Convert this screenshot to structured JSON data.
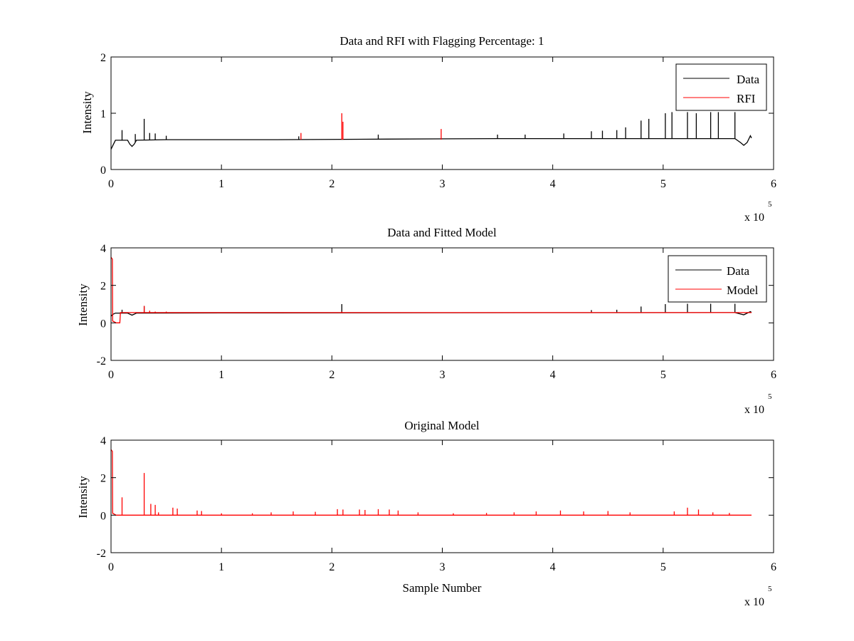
{
  "colors": {
    "data": "#000000",
    "model": "#ff0000",
    "background": "#ffffff"
  },
  "chart_data": [
    {
      "type": "line",
      "title": "Data and RFI with Flagging Percentage: 1",
      "xlabel": "",
      "ylabel": "Intensity",
      "xlim": [
        0,
        6
      ],
      "ylim": [
        0,
        2
      ],
      "x_scale_label": "x 10",
      "x_scale_exponent": "5",
      "xticks": [
        0,
        1,
        2,
        3,
        4,
        5,
        6
      ],
      "yticks": [
        0,
        1,
        2
      ],
      "xtick_labels": [
        "0",
        "1",
        "2",
        "3",
        "4",
        "5",
        "6"
      ],
      "ytick_labels": [
        "0",
        "1",
        "2"
      ],
      "legend": [
        {
          "label": "Data",
          "color": "#000000"
        },
        {
          "label": "RFI",
          "color": "#ff0000"
        }
      ],
      "legend_position": "top-right",
      "series": [
        {
          "name": "Data",
          "color": "#000000",
          "baseline": [
            [
              0,
              0.36
            ],
            [
              0.015,
              0.42
            ],
            [
              0.04,
              0.52
            ],
            [
              0.15,
              0.52
            ],
            [
              0.17,
              0.45
            ],
            [
              0.19,
              0.41
            ],
            [
              0.21,
              0.45
            ],
            [
              0.23,
              0.52
            ],
            [
              0.5,
              0.53
            ],
            [
              1.5,
              0.53
            ],
            [
              2.5,
              0.54
            ],
            [
              3.5,
              0.55
            ],
            [
              4.5,
              0.55
            ],
            [
              5.65,
              0.55
            ],
            [
              5.7,
              0.48
            ],
            [
              5.73,
              0.43
            ],
            [
              5.76,
              0.48
            ],
            [
              5.79,
              0.6
            ],
            [
              5.8,
              0.56
            ]
          ],
          "spikes": [
            [
              0.1,
              0.7
            ],
            [
              0.22,
              0.63
            ],
            [
              0.3,
              0.9
            ],
            [
              0.35,
              0.65
            ],
            [
              0.4,
              0.64
            ],
            [
              0.5,
              0.6
            ],
            [
              1.7,
              0.59
            ],
            [
              2.42,
              0.62
            ],
            [
              3.5,
              0.62
            ],
            [
              3.75,
              0.62
            ],
            [
              4.1,
              0.64
            ],
            [
              4.35,
              0.68
            ],
            [
              4.45,
              0.69
            ],
            [
              4.58,
              0.7
            ],
            [
              4.66,
              0.75
            ],
            [
              4.8,
              0.87
            ],
            [
              4.87,
              0.9
            ],
            [
              5.02,
              1.0
            ],
            [
              5.08,
              1.02
            ],
            [
              5.22,
              1.02
            ],
            [
              5.3,
              1.0
            ],
            [
              5.43,
              1.02
            ],
            [
              5.5,
              1.02
            ],
            [
              5.65,
              1.02
            ]
          ]
        },
        {
          "name": "RFI",
          "color": "#ff0000",
          "spikes": [
            [
              1.72,
              0.65
            ],
            [
              2.09,
              1.0
            ],
            [
              2.1,
              0.85
            ],
            [
              2.99,
              0.72
            ]
          ]
        }
      ]
    },
    {
      "type": "line",
      "title": "Data and Fitted Model",
      "xlabel": "",
      "ylabel": "Intensity",
      "xlim": [
        0,
        6
      ],
      "ylim": [
        -2,
        4
      ],
      "x_scale_label": "x 10",
      "x_scale_exponent": "5",
      "xticks": [
        0,
        1,
        2,
        3,
        4,
        5,
        6
      ],
      "yticks": [
        -2,
        0,
        2,
        4
      ],
      "xtick_labels": [
        "0",
        "1",
        "2",
        "3",
        "4",
        "5",
        "6"
      ],
      "ytick_labels": [
        "-2",
        "0",
        "2",
        "4"
      ],
      "legend": [
        {
          "label": "Data",
          "color": "#000000"
        },
        {
          "label": "Model",
          "color": "#ff0000"
        }
      ],
      "legend_position": "top-right",
      "series": [
        {
          "name": "Data",
          "color": "#000000",
          "baseline": [
            [
              0,
              0.36
            ],
            [
              0.015,
              0.45
            ],
            [
              0.04,
              0.52
            ],
            [
              0.15,
              0.52
            ],
            [
              0.19,
              0.41
            ],
            [
              0.23,
              0.52
            ],
            [
              1.0,
              0.53
            ],
            [
              3.0,
              0.54
            ],
            [
              5.65,
              0.55
            ],
            [
              5.73,
              0.43
            ],
            [
              5.79,
              0.6
            ],
            [
              5.8,
              0.56
            ]
          ],
          "spikes": [
            [
              0.1,
              0.7
            ],
            [
              0.3,
              0.9
            ],
            [
              2.09,
              1.0
            ],
            [
              4.35,
              0.68
            ],
            [
              4.58,
              0.7
            ],
            [
              4.8,
              0.87
            ],
            [
              5.02,
              1.0
            ],
            [
              5.22,
              1.02
            ],
            [
              5.43,
              1.02
            ],
            [
              5.65,
              1.02
            ]
          ]
        },
        {
          "name": "Model",
          "color": "#ff0000",
          "baseline": [
            [
              0,
              3.5
            ],
            [
              0.012,
              3.4
            ],
            [
              0.015,
              0.1
            ],
            [
              0.03,
              0.05
            ],
            [
              0.045,
              0.0
            ],
            [
              0.08,
              0.0
            ],
            [
              0.085,
              0.55
            ],
            [
              5.8,
              0.55
            ]
          ],
          "spikes": [
            [
              0.3,
              0.9
            ],
            [
              0.35,
              0.65
            ],
            [
              0.4,
              0.6
            ],
            [
              0.5,
              0.6
            ],
            [
              2.09,
              0.6
            ],
            [
              4.35,
              0.6
            ]
          ]
        }
      ]
    },
    {
      "type": "line",
      "title": "Original Model",
      "xlabel": "Sample Number",
      "ylabel": "Intensity",
      "xlim": [
        0,
        6
      ],
      "ylim": [
        -2,
        4
      ],
      "x_scale_label": "x 10",
      "x_scale_exponent": "5",
      "xticks": [
        0,
        1,
        2,
        3,
        4,
        5,
        6
      ],
      "yticks": [
        -2,
        0,
        2,
        4
      ],
      "xtick_labels": [
        "0",
        "1",
        "2",
        "3",
        "4",
        "5",
        "6"
      ],
      "ytick_labels": [
        "-2",
        "0",
        "2",
        "4"
      ],
      "legend": [],
      "series": [
        {
          "name": "Model",
          "color": "#ff0000",
          "baseline": [
            [
              0,
              3.5
            ],
            [
              0.012,
              3.4
            ],
            [
              0.015,
              0.1
            ],
            [
              0.03,
              0.05
            ],
            [
              0.045,
              0.0
            ],
            [
              5.8,
              0.0
            ]
          ],
          "spikes": [
            [
              0.1,
              0.95
            ],
            [
              0.3,
              2.25
            ],
            [
              0.36,
              0.6
            ],
            [
              0.4,
              0.55
            ],
            [
              0.43,
              0.15
            ],
            [
              0.56,
              0.4
            ],
            [
              0.6,
              0.35
            ],
            [
              0.78,
              0.25
            ],
            [
              0.82,
              0.22
            ],
            [
              1.0,
              0.1
            ],
            [
              1.28,
              0.1
            ],
            [
              1.45,
              0.15
            ],
            [
              1.65,
              0.2
            ],
            [
              1.85,
              0.18
            ],
            [
              2.05,
              0.32
            ],
            [
              2.1,
              0.3
            ],
            [
              2.25,
              0.3
            ],
            [
              2.3,
              0.28
            ],
            [
              2.42,
              0.32
            ],
            [
              2.52,
              0.3
            ],
            [
              2.6,
              0.25
            ],
            [
              2.78,
              0.15
            ],
            [
              3.1,
              0.1
            ],
            [
              3.4,
              0.12
            ],
            [
              3.65,
              0.15
            ],
            [
              3.85,
              0.2
            ],
            [
              4.07,
              0.25
            ],
            [
              4.28,
              0.2
            ],
            [
              4.5,
              0.22
            ],
            [
              4.7,
              0.15
            ],
            [
              5.1,
              0.2
            ],
            [
              5.22,
              0.4
            ],
            [
              5.32,
              0.3
            ],
            [
              5.45,
              0.15
            ],
            [
              5.6,
              0.12
            ]
          ]
        }
      ]
    }
  ]
}
